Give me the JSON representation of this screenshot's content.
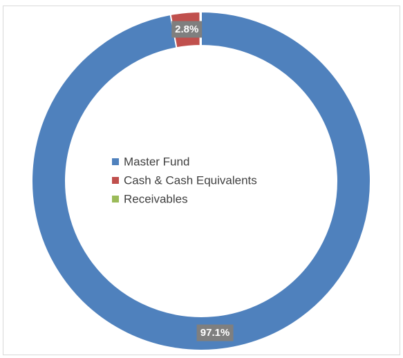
{
  "chart_data": {
    "type": "pie",
    "variant": "doughnut",
    "title": "",
    "categories": [
      "Master Fund",
      "Cash & Cash Equivalents",
      "Receivables"
    ],
    "values": [
      97.1,
      2.8,
      0.1
    ],
    "data_labels": [
      "97.1%",
      "2.8%",
      ""
    ],
    "colors": [
      "#4f81bd",
      "#c0504d",
      "#9bbb59"
    ],
    "legend": {
      "position": "center",
      "entries": [
        "Master Fund",
        "Cash & Cash Equivalents",
        "Receivables"
      ]
    }
  }
}
